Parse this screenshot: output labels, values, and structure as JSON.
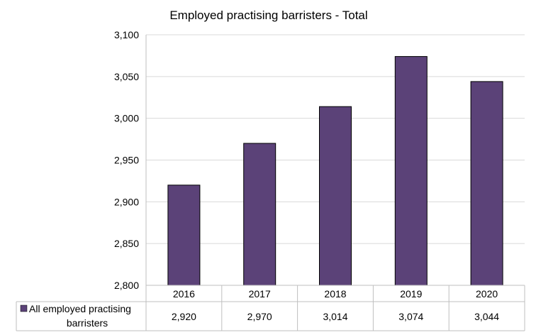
{
  "chart_data": {
    "type": "bar",
    "title": "Employed practising barristers - Total",
    "categories": [
      "2016",
      "2017",
      "2018",
      "2019",
      "2020"
    ],
    "series": [
      {
        "name": "All employed practising barristers",
        "values": [
          2920,
          2970,
          3014,
          3074,
          3044
        ],
        "value_labels": [
          "2,920",
          "2,970",
          "3,014",
          "3,074",
          "3,044"
        ],
        "color": "#5b4278"
      }
    ],
    "y_ticks": [
      "2,800",
      "2,850",
      "2,900",
      "2,950",
      "3,000",
      "3,050",
      "3,100"
    ],
    "y_tick_values": [
      2800,
      2850,
      2900,
      2950,
      3000,
      3050,
      3100
    ],
    "ylim": [
      2800,
      3100
    ],
    "grid": true,
    "legend": "data-table-bottom-left",
    "xlabel": "",
    "ylabel": ""
  },
  "legend_lines": [
    "All employed practising",
    "barristers"
  ]
}
